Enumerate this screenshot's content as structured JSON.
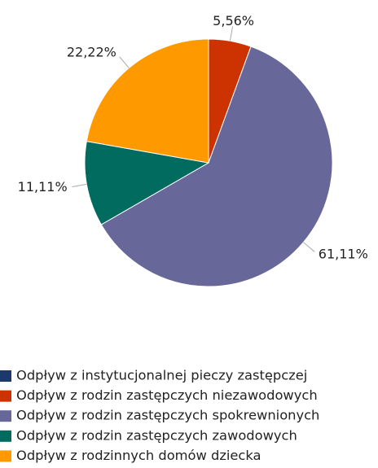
{
  "chart_data": {
    "type": "pie",
    "categories": [
      "Odpływ z instytucjonalnej pieczy zastępczej",
      "Odpływ z rodzin zastępczych niezawodowych",
      "Odpływ z rodzin zastępczych spokrewnionych",
      "Odpływ z rodzin zastępczych zawodowych",
      "Odpływ z rodzinnych domów dziecka"
    ],
    "values": [
      0,
      5.56,
      61.11,
      11.11,
      22.22
    ],
    "value_labels": [
      null,
      "5,56%",
      "61,11%",
      "11,11%",
      "22,22%"
    ],
    "colors": [
      "#1b3a6b",
      "#cc3300",
      "#67679a",
      "#006b5e",
      "#ff9900"
    ],
    "legend": "bottom-left"
  }
}
